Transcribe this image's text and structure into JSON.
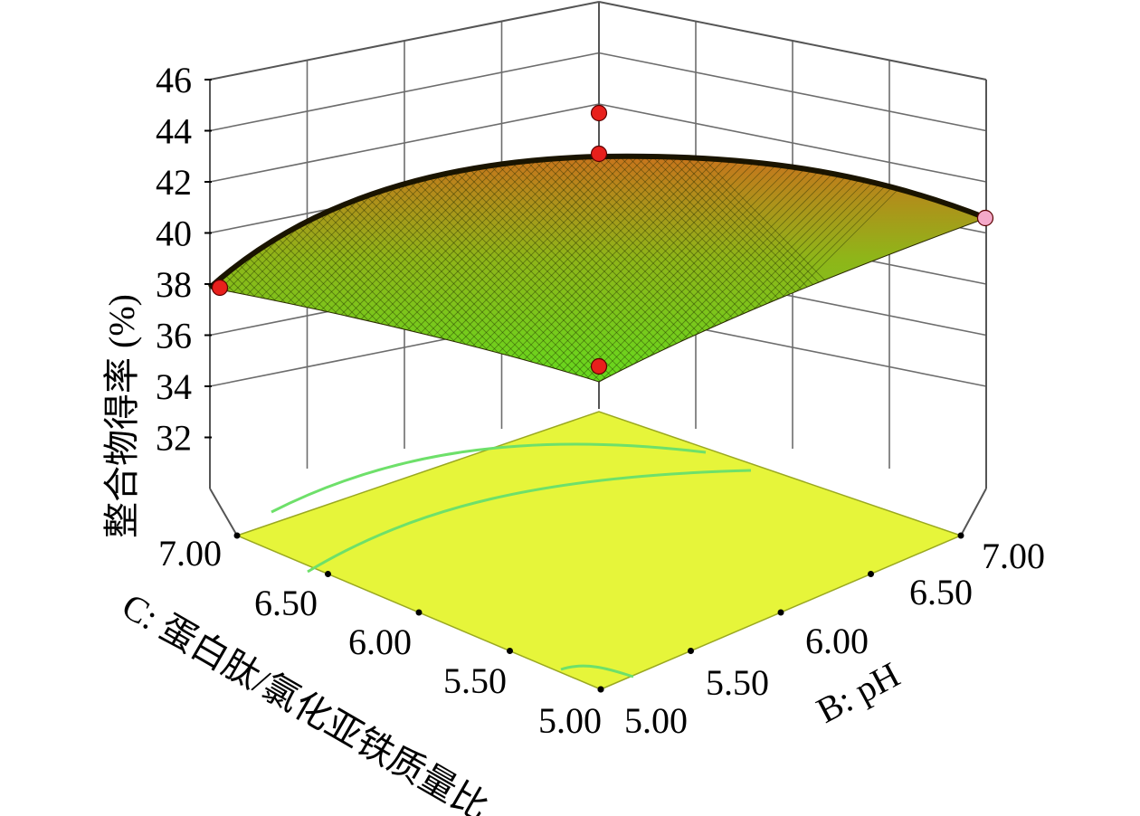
{
  "chart_data": {
    "type": "surface",
    "z_axis": {
      "label": "整合物得率 (%)",
      "ticks": [
        "32",
        "34",
        "36",
        "38",
        "40",
        "42",
        "44",
        "46"
      ],
      "range": [
        30,
        46
      ]
    },
    "x_axis": {
      "label": "C: 蛋白肽/氯化亚铁质量比",
      "ticks": [
        "5.00",
        "5.50",
        "6.00",
        "6.50",
        "7.00"
      ],
      "range": [
        5,
        7
      ]
    },
    "y_axis": {
      "label": "B: pH",
      "ticks": [
        "5.00",
        "5.50",
        "6.00",
        "6.50",
        "7.00"
      ],
      "range": [
        5,
        7
      ]
    },
    "surface": {
      "corners": [
        {
          "C": 5.0,
          "B": 5.0,
          "z": 34.0
        },
        {
          "C": 7.0,
          "B": 5.0,
          "z": 37.7
        },
        {
          "C": 5.0,
          "B": 7.0,
          "z": 40.3
        },
        {
          "C": 7.0,
          "B": 7.0,
          "z": 41.0
        }
      ],
      "peak": {
        "C": 6.2,
        "B": 6.3,
        "z": 42.8
      }
    },
    "design_points": [
      {
        "C": 7.0,
        "B": 5.0,
        "z": 37.4,
        "color": "#e8201c"
      },
      {
        "C": 5.0,
        "B": 5.0,
        "z": 34.6,
        "color": "#e8201c"
      },
      {
        "C": 5.0,
        "B": 7.0,
        "z": 40.3,
        "color": "#f4a9c9"
      },
      {
        "C": 7.0,
        "B": 7.0,
        "z": 44.5,
        "color": "#e8201c"
      },
      {
        "C": 7.0,
        "B": 7.0,
        "z": 43.0,
        "color": "#e8201c"
      }
    ],
    "colors": {
      "surface_low": "#66d91e",
      "surface_high": "#c8741c",
      "floor": "#e6f53a",
      "contour": "#6ee06a",
      "point_high": "#e8201c",
      "point_low": "#f4a9c9"
    }
  }
}
